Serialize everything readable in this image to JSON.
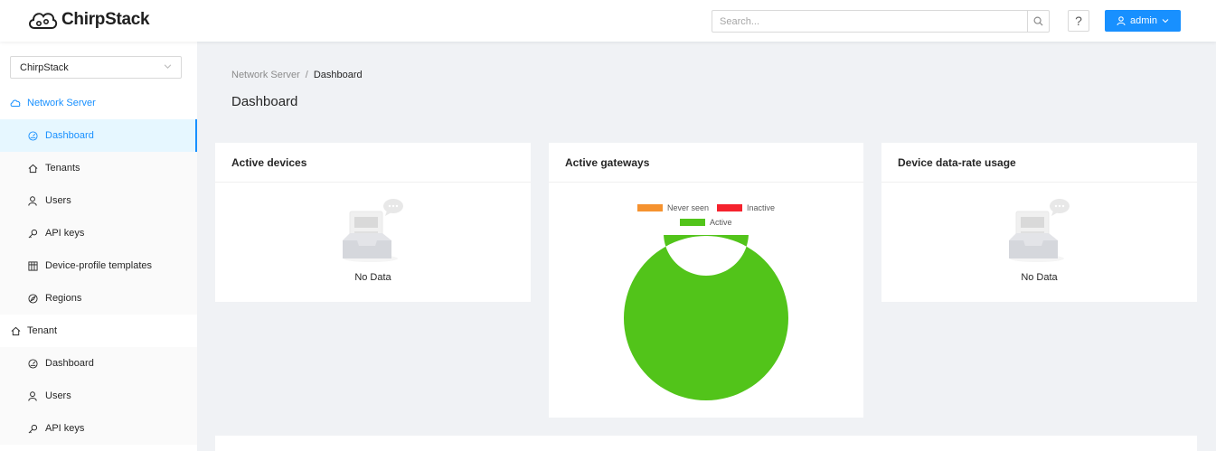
{
  "app": {
    "name": "ChirpStack"
  },
  "header": {
    "search_placeholder": "Search...",
    "help_label": "?",
    "user_label": "admin"
  },
  "sidebar": {
    "tenant_select": "ChirpStack",
    "network_server": {
      "label": "Network Server",
      "items": [
        {
          "label": "Dashboard",
          "icon": "dashboard-icon",
          "selected": true
        },
        {
          "label": "Tenants",
          "icon": "home-icon"
        },
        {
          "label": "Users",
          "icon": "user-icon"
        },
        {
          "label": "API keys",
          "icon": "key-icon"
        },
        {
          "label": "Device-profile templates",
          "icon": "table-icon"
        },
        {
          "label": "Regions",
          "icon": "compass-icon"
        }
      ]
    },
    "tenant": {
      "label": "Tenant",
      "items": [
        {
          "label": "Dashboard",
          "icon": "dashboard-icon"
        },
        {
          "label": "Users",
          "icon": "user-icon"
        },
        {
          "label": "API keys",
          "icon": "key-icon"
        }
      ]
    }
  },
  "breadcrumb": [
    "Network Server",
    "/",
    "Dashboard"
  ],
  "page_title": "Dashboard",
  "cards": {
    "active_devices": {
      "title": "Active devices",
      "empty_text": "No Data"
    },
    "active_gateways": {
      "title": "Active gateways"
    },
    "data_rate": {
      "title": "Device data-rate usage",
      "empty_text": "No Data"
    }
  },
  "chart_data": {
    "type": "pie",
    "title": "Active gateways",
    "categories": [
      "Never seen",
      "Inactive",
      "Active"
    ],
    "values": [
      0,
      0,
      1
    ],
    "colors": [
      "#f5922f",
      "#f5222d",
      "#52c41a"
    ],
    "donut": true,
    "legend": "top"
  }
}
